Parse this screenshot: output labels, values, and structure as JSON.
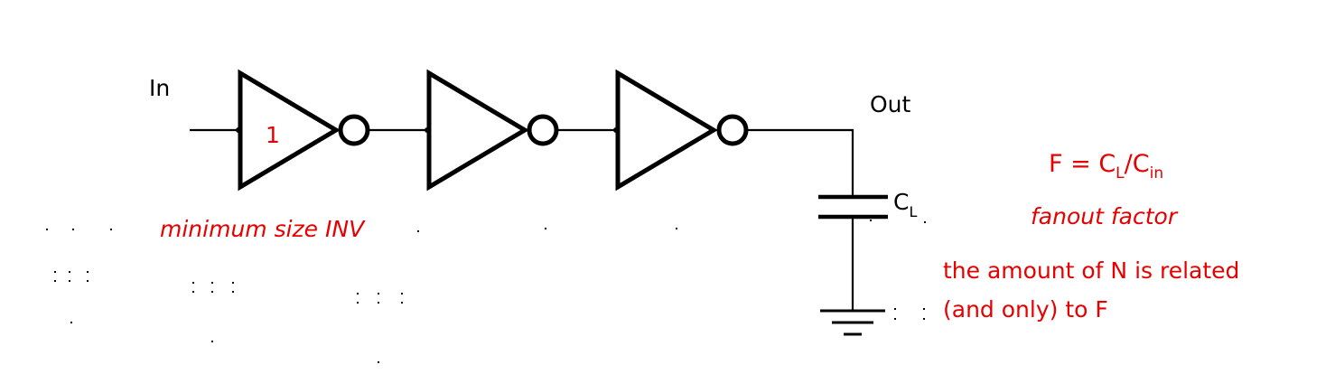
{
  "labels": {
    "input": "In",
    "output": "Out",
    "load_cap": "C",
    "load_cap_sub": "L",
    "first_gate_size": "1",
    "min_size_note": "minimum size INV"
  },
  "equation": {
    "lhs": "F = C",
    "lhs_sub": "L",
    "slash": "/C",
    "rhs_sub": "in"
  },
  "notes": {
    "fanout": "fanout factor",
    "relation_line1": "the amount of N is related",
    "relation_line2": "(and only) to F"
  },
  "colors": {
    "annotation": "#e60000",
    "wire": "#000000"
  }
}
